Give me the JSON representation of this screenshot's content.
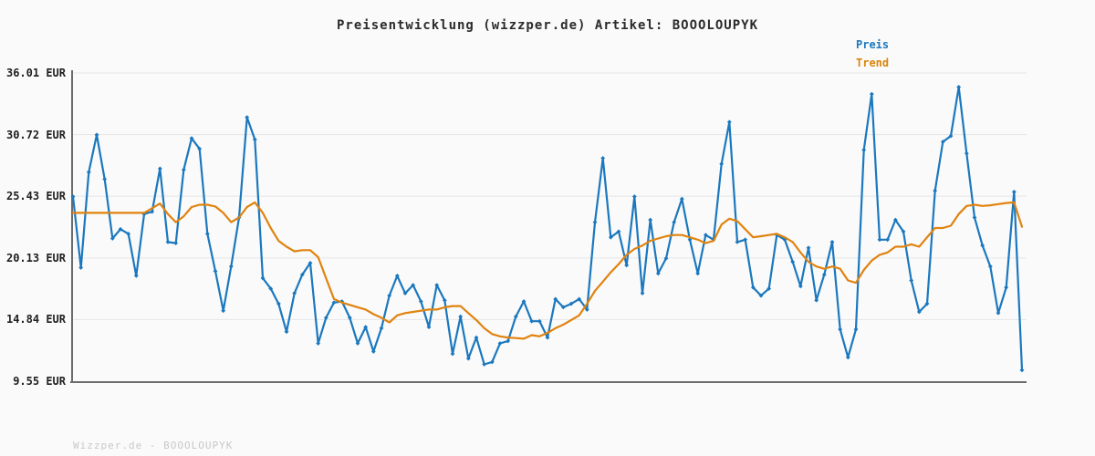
{
  "header": {
    "title": "Preisentwicklung (wizzper.de) Artikel: BOOOLOUPYK"
  },
  "legend": {
    "items": [
      {
        "label": "Preis",
        "color": "#1b78be"
      },
      {
        "label": "Trend",
        "color": "#d8860b"
      }
    ]
  },
  "footer": {
    "watermark": "Wizzper.de - BOOOLOUPYK"
  },
  "chart_data": {
    "type": "line",
    "title": "Preisentwicklung (wizzper.de) Artikel: BOOOLOUPYK",
    "xlabel": "",
    "ylabel": "EUR",
    "ylim": [
      9.55,
      36.01
    ],
    "grid": true,
    "legend_position": "top-right",
    "yticks": [
      {
        "label": "36.01 EUR",
        "value": 36.01
      },
      {
        "label": "30.72 EUR",
        "value": 30.72
      },
      {
        "label": "25.43 EUR",
        "value": 25.43
      },
      {
        "label": "20.13 EUR",
        "value": 20.13
      },
      {
        "label": "14.84 EUR",
        "value": 14.84
      },
      {
        "label": "9.55 EUR",
        "value": 9.55
      }
    ],
    "series": [
      {
        "name": "Preis",
        "color": "#1b78be",
        "markers": true,
        "values": [
          25.4,
          19.3,
          27.5,
          30.7,
          26.9,
          21.8,
          22.6,
          22.2,
          18.6,
          23.9,
          24.1,
          27.8,
          21.5,
          21.4,
          27.7,
          30.4,
          29.5,
          22.2,
          19.0,
          15.6,
          19.4,
          23.6,
          32.2,
          30.3,
          18.4,
          17.5,
          16.2,
          13.8,
          17.1,
          18.7,
          19.7,
          12.8,
          15.0,
          16.3,
          16.4,
          15.0,
          12.8,
          14.2,
          12.1,
          14.1,
          16.9,
          18.6,
          17.1,
          17.8,
          16.4,
          14.2,
          17.8,
          16.5,
          11.9,
          15.1,
          11.5,
          13.3,
          11.0,
          11.2,
          12.8,
          13.0,
          15.1,
          16.4,
          14.7,
          14.7,
          13.3,
          16.6,
          15.9,
          16.2,
          16.6,
          15.7,
          23.2,
          28.7,
          21.9,
          22.4,
          19.5,
          25.4,
          17.1,
          23.4,
          18.8,
          20.1,
          23.2,
          25.2,
          21.7,
          18.8,
          22.1,
          21.7,
          28.2,
          31.8,
          21.5,
          21.7,
          17.6,
          16.9,
          17.5,
          22.1,
          21.7,
          19.8,
          17.7,
          21.0,
          16.5,
          18.7,
          21.5,
          14.0,
          11.6,
          14.0,
          29.4,
          34.2,
          21.7,
          21.7,
          23.4,
          22.4,
          18.2,
          15.5,
          16.2,
          25.9,
          30.1,
          30.6,
          34.8,
          29.1,
          23.6,
          21.2,
          19.4,
          15.4,
          17.6,
          25.8,
          10.5
        ]
      },
      {
        "name": "Trend",
        "color": "#e0830f",
        "markers": false,
        "values": [
          24.0,
          24.0,
          24.0,
          24.0,
          24.0,
          24.0,
          24.0,
          24.0,
          24.0,
          24.0,
          24.4,
          24.8,
          23.9,
          23.2,
          23.7,
          24.5,
          24.7,
          24.7,
          24.55,
          24.0,
          23.2,
          23.6,
          24.5,
          24.9,
          24.0,
          22.7,
          21.6,
          21.1,
          20.7,
          20.8,
          20.8,
          20.2,
          18.4,
          16.6,
          16.3,
          16.1,
          15.9,
          15.7,
          15.3,
          15.0,
          14.6,
          15.2,
          15.4,
          15.5,
          15.6,
          15.7,
          15.7,
          15.9,
          16.0,
          16.0,
          15.4,
          14.8,
          14.1,
          13.6,
          13.4,
          13.3,
          13.25,
          13.2,
          13.5,
          13.4,
          13.7,
          14.1,
          14.4,
          14.8,
          15.2,
          16.2,
          17.3,
          18.1,
          18.9,
          19.6,
          20.4,
          20.9,
          21.2,
          21.6,
          21.8,
          22.0,
          22.1,
          22.1,
          21.9,
          21.7,
          21.4,
          21.6,
          23.0,
          23.5,
          23.3,
          22.6,
          21.9,
          22.0,
          22.1,
          22.2,
          21.9,
          21.5,
          20.6,
          19.8,
          19.4,
          19.2,
          19.4,
          19.2,
          18.2,
          18.0,
          19.1,
          19.9,
          20.4,
          20.6,
          21.1,
          21.1,
          21.3,
          21.1,
          21.9,
          22.7,
          22.7,
          22.9,
          23.9,
          24.6,
          24.7,
          24.6,
          24.65,
          24.75,
          24.85,
          24.9,
          22.8
        ]
      }
    ]
  }
}
